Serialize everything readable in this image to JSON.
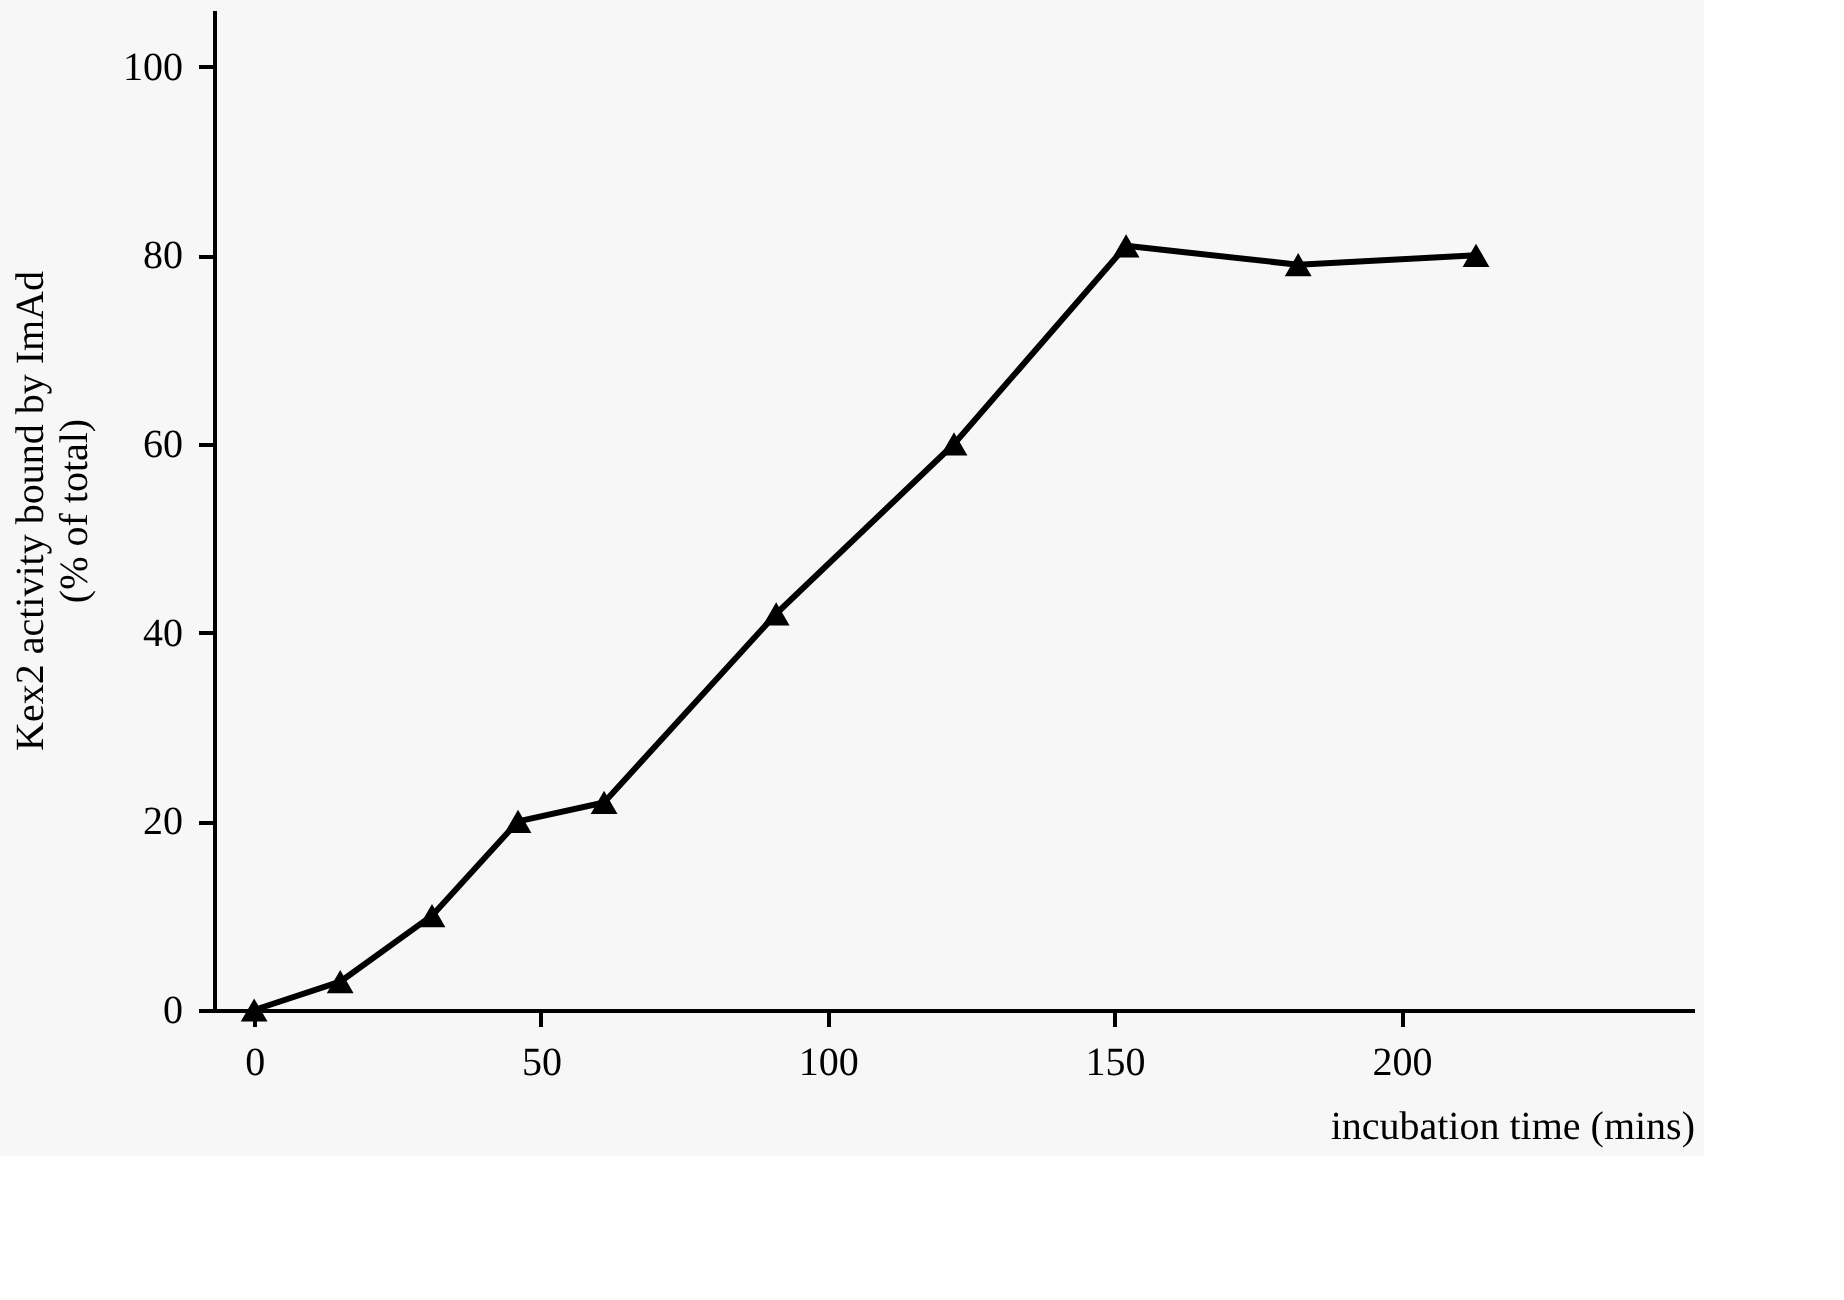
{
  "chart_data": {
    "type": "line",
    "xlabel": "incubation time (mins)",
    "ylabel": "Kex2 activity bound by ImAd\n(% of total)",
    "x": [
      0,
      15,
      31,
      46,
      61,
      91,
      122,
      152,
      182,
      213
    ],
    "series": [
      {
        "color": "#000000",
        "values": [
          0,
          3,
          10,
          20,
          22,
          42,
          60,
          81,
          79,
          80
        ]
      }
    ],
    "xlim": [
      -7,
      251
    ],
    "xticks": [
      0,
      50,
      100,
      150,
      200
    ],
    "ylim": [
      0,
      106
    ],
    "yticks": [
      0,
      20,
      40,
      60,
      80,
      100
    ],
    "grid": false,
    "marker": "triangle",
    "line_style": "solid"
  }
}
